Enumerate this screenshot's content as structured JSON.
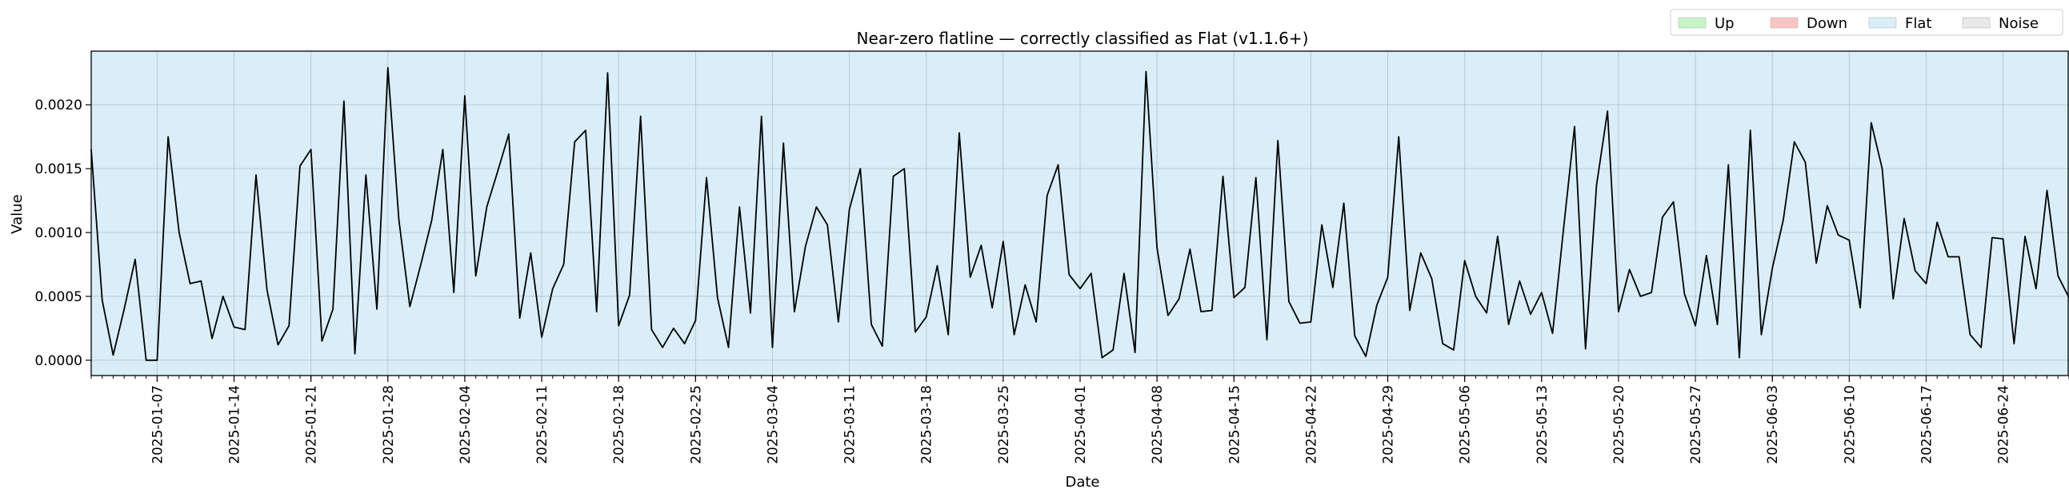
{
  "chart_data": {
    "type": "line",
    "title": "Near-zero flatline — correctly classified as Flat (v1.1.6+)",
    "xlabel": "Date",
    "ylabel": "Value",
    "x_start": "2025-01-01",
    "xlim": [
      "2025-01-01",
      "2025-06-30"
    ],
    "ylim": [
      -0.00012,
      0.00242
    ],
    "y_ticks": [
      0.0,
      0.0005,
      0.001,
      0.0015,
      0.002
    ],
    "y_tick_labels": [
      "0.0000",
      "0.0005",
      "0.0010",
      "0.0015",
      "0.0020"
    ],
    "x_ticks": [
      "2025-01-07",
      "2025-01-14",
      "2025-01-21",
      "2025-01-28",
      "2025-02-04",
      "2025-02-11",
      "2025-02-18",
      "2025-02-25",
      "2025-03-04",
      "2025-03-11",
      "2025-03-18",
      "2025-03-25",
      "2025-04-01",
      "2025-04-08",
      "2025-04-15",
      "2025-04-22",
      "2025-04-29",
      "2025-05-06",
      "2025-05-13",
      "2025-05-20",
      "2025-05-27",
      "2025-06-03",
      "2025-06-10",
      "2025-06-17",
      "2025-06-24"
    ],
    "grid": true,
    "background_region": "Flat",
    "legend": {
      "placement": "top-right, outside",
      "entries": [
        {
          "label": "Up",
          "color": "#c6f5c6"
        },
        {
          "label": "Down",
          "color": "#f8c4c4"
        },
        {
          "label": "Flat",
          "color": "#d9eef8"
        },
        {
          "label": "Noise",
          "color": "#e8e8e8"
        }
      ]
    },
    "colors": {
      "line": "#000000",
      "flat_region": "#d9eef8",
      "grid": "#b0b8bf"
    },
    "series": [
      {
        "values": [
          0.00165,
          0.00047,
          4e-05,
          0.0004,
          0.00079,
          0.0,
          0.0,
          0.00175,
          0.001,
          0.0006,
          0.00062,
          0.00017,
          0.0005,
          0.00026,
          0.00024,
          0.00145,
          0.00055,
          0.00012,
          0.00027,
          0.00152,
          0.00165,
          0.00015,
          0.0004,
          0.00203,
          5e-05,
          0.00145,
          0.0004,
          0.00229,
          0.0011,
          0.00042,
          0.00075,
          0.0011,
          0.00165,
          0.00053,
          0.00207,
          0.00066,
          0.0012,
          0.00148,
          0.00177,
          0.00033,
          0.00084,
          0.00018,
          0.00056,
          0.00075,
          0.00171,
          0.0018,
          0.00038,
          0.00225,
          0.00027,
          0.00051,
          0.00191,
          0.00024,
          0.0001,
          0.00025,
          0.00013,
          0.00031,
          0.00143,
          0.00049,
          0.0001,
          0.0012,
          0.00037,
          0.00191,
          0.0001,
          0.0017,
          0.00038,
          0.00089,
          0.0012,
          0.00106,
          0.0003,
          0.00118,
          0.0015,
          0.00028,
          0.00011,
          0.00144,
          0.0015,
          0.00022,
          0.00034,
          0.00074,
          0.0002,
          0.00178,
          0.00065,
          0.0009,
          0.00041,
          0.00093,
          0.0002,
          0.00059,
          0.0003,
          0.00129,
          0.00153,
          0.00067,
          0.00056,
          0.00068,
          2e-05,
          8e-05,
          0.00068,
          6e-05,
          0.00226,
          0.00088,
          0.00035,
          0.00048,
          0.00087,
          0.00038,
          0.00039,
          0.00144,
          0.00049,
          0.00057,
          0.00143,
          0.00016,
          0.00172,
          0.00046,
          0.00029,
          0.0003,
          0.00106,
          0.00057,
          0.00123,
          0.00019,
          3e-05,
          0.00043,
          0.00065,
          0.00175,
          0.00039,
          0.00084,
          0.00064,
          0.00013,
          8e-05,
          0.00078,
          0.0005,
          0.00037,
          0.00097,
          0.00028,
          0.00062,
          0.00036,
          0.00053,
          0.00021,
          0.00103,
          0.00183,
          9e-05,
          0.00137,
          0.00195,
          0.00038,
          0.00071,
          0.0005,
          0.00053,
          0.00112,
          0.00124,
          0.00052,
          0.00027,
          0.00082,
          0.00028,
          0.00153,
          2e-05,
          0.0018,
          0.0002,
          0.00072,
          0.0011,
          0.00171,
          0.00155,
          0.00076,
          0.00121,
          0.00098,
          0.00094,
          0.00041,
          0.00186,
          0.0015,
          0.00048,
          0.00111,
          0.0007,
          0.0006,
          0.00108,
          0.00081,
          0.00081,
          0.0002,
          0.0001,
          0.00096,
          0.00095,
          0.00013,
          0.00097,
          0.00056,
          0.00133,
          0.00066,
          0.00049
        ]
      }
    ]
  }
}
